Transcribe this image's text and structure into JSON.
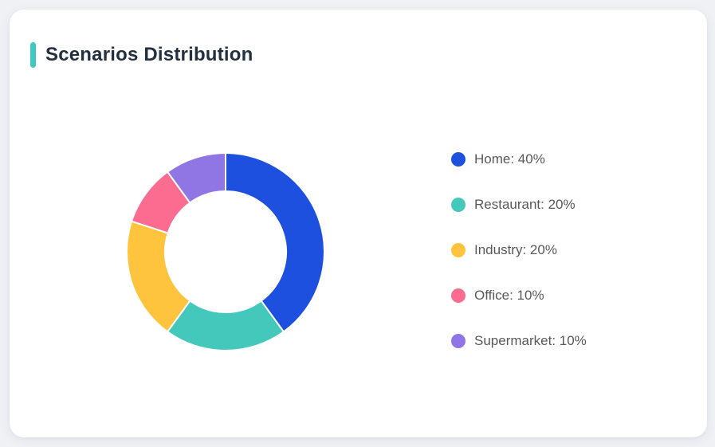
{
  "page": {
    "background_color": "#eff1f4",
    "card_background_color": "#ffffff"
  },
  "header": {
    "title": "Scenarios Distribution",
    "accent_color": "#3fc8be",
    "title_color": "#223040"
  },
  "legend": {
    "text_color": "#595959"
  },
  "chart_data": {
    "type": "pie",
    "variant": "donut",
    "title": "Scenarios Distribution",
    "legend_position": "right",
    "direction": "clockwise",
    "start_angle_deg": 0,
    "inner_radius_ratio": 0.61,
    "unit": "%",
    "categories": [
      "Home",
      "Restaurant",
      "Industry",
      "Office",
      "Supermarket"
    ],
    "values": [
      40,
      20,
      20,
      10,
      10
    ],
    "colors": [
      "#1e50e0",
      "#45c8bc",
      "#fec43d",
      "#fc6b90",
      "#9076e4"
    ],
    "legend_labels": [
      "Home: 40%",
      "Restaurant: 20%",
      "Industry: 20%",
      "Office: 10%",
      "Supermarket: 10%"
    ]
  }
}
